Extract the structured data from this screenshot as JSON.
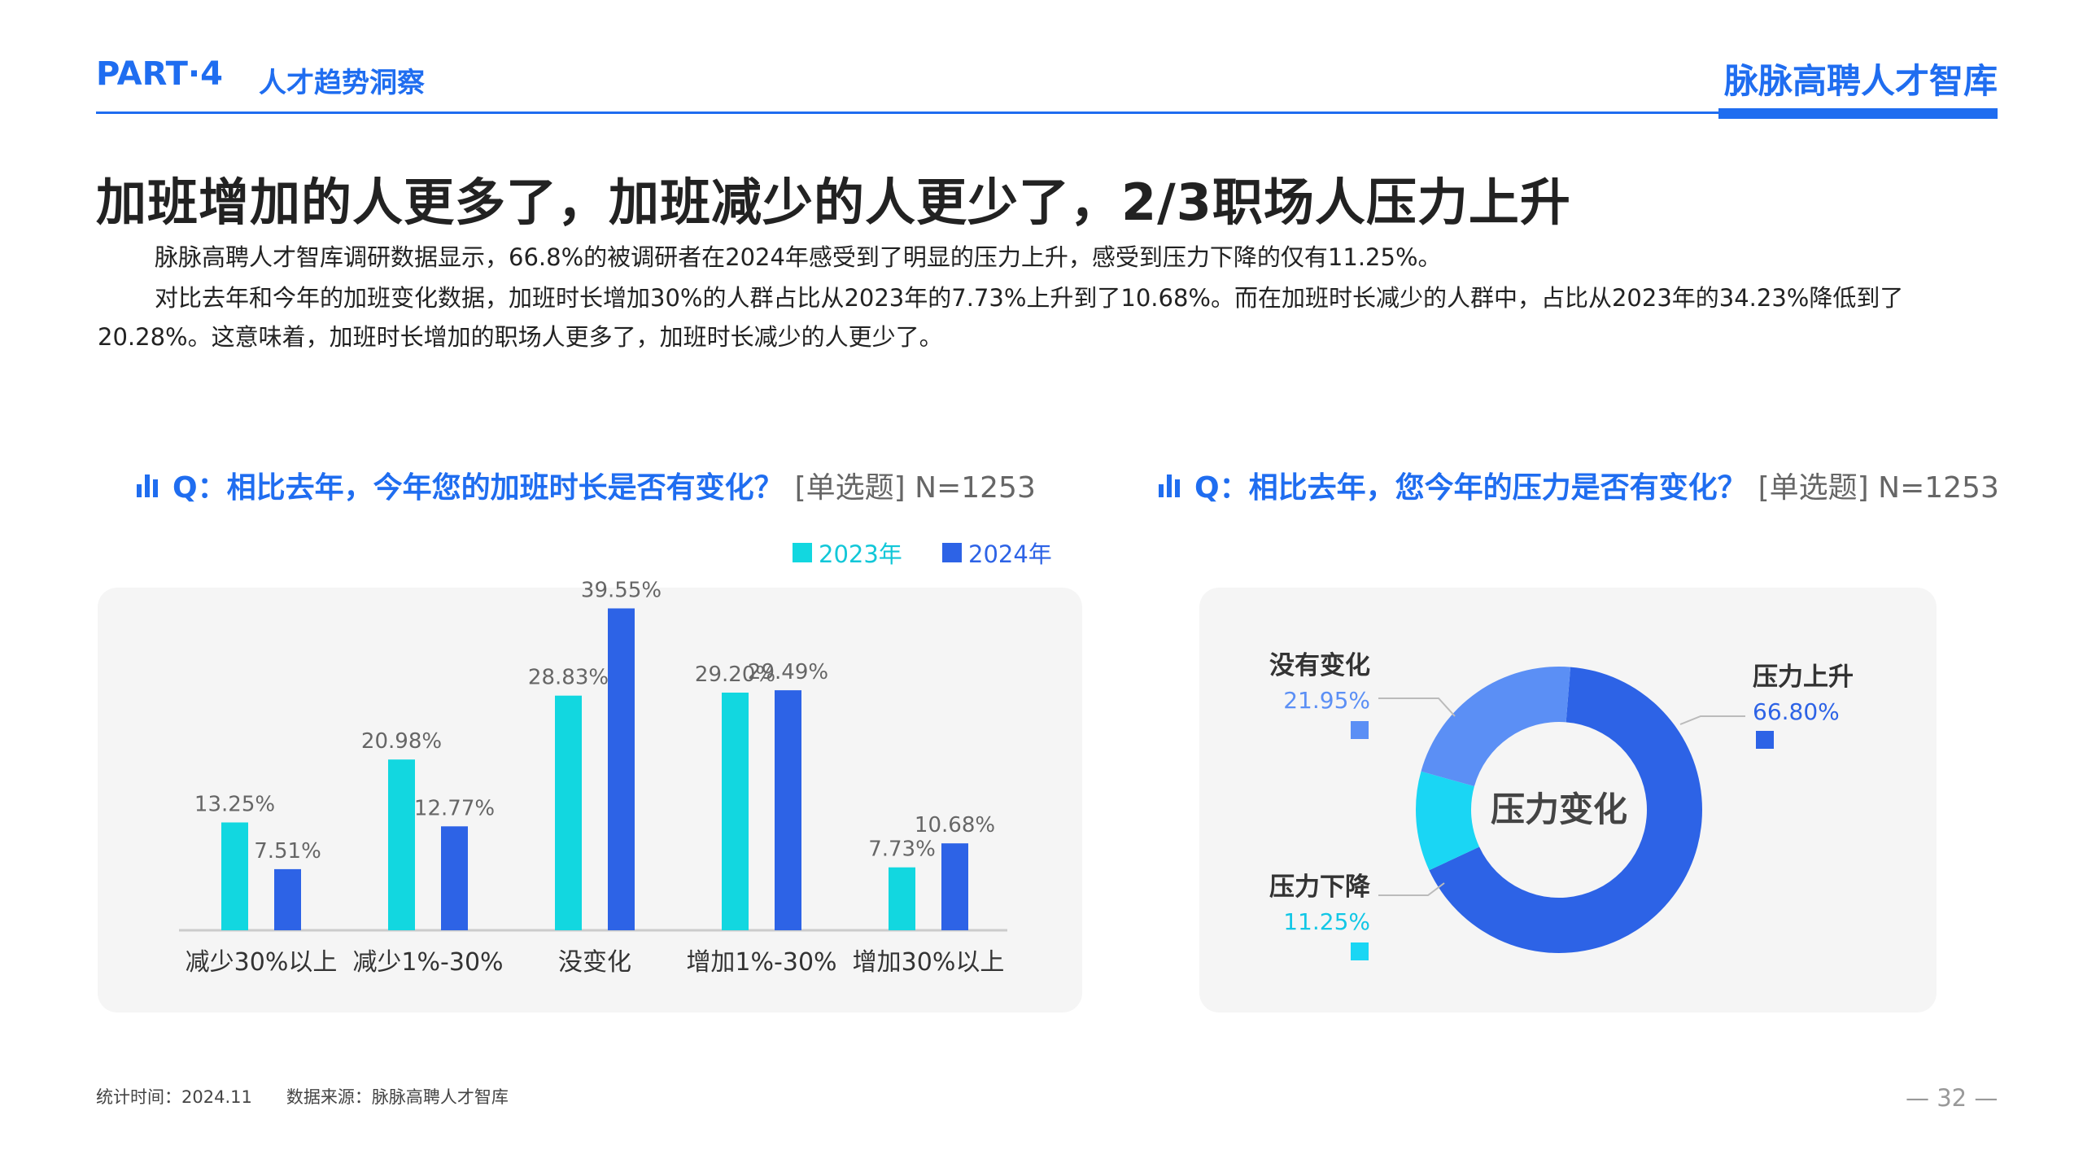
{
  "header": {
    "part": "PART",
    "part_sep": "·",
    "part_num": "4",
    "section": "人才趋势洞察",
    "brand": "脉脉高聘人才智库"
  },
  "headline": "加班增加的人更多了，加班减少的人更少了，2/3职场人压力上升",
  "paragraphs": [
    "脉脉高聘人才智库调研数据显示，66.8%的被调研者在2024年感受到了明显的压力上升，感受到压力下降的仅有11.25%。",
    "对比去年和今年的加班变化数据，加班时长增加30%的人群占比从2023年的7.73%上升到了10.68%。而在加班时长减少的人群中，占比从2023年的34.23%降低到了20.28%。这意味着，加班时长增加的职场人更多了，加班时长减少的人更少了。"
  ],
  "q1": {
    "main": "Q：相比去年，今年您的加班时长是否有变化？",
    "sub": "[单选题] N=1253"
  },
  "q2": {
    "main": "Q：相比去年，您今年的压力是否有变化？",
    "sub": "[单选题] N=1253"
  },
  "legend": {
    "a": "2023年",
    "b": "2024年"
  },
  "colors": {
    "accent": "#1f6df0",
    "bar_2023": "#12d7e0",
    "bar_2024": "#2d63e6",
    "donut_up": "#2d63e6",
    "donut_same": "#5b8ff5",
    "donut_down": "#1ad6f4"
  },
  "chart_data": [
    {
      "type": "bar",
      "categories": [
        "减少30%以上",
        "减少1%-30%",
        "没变化",
        "增加1%-30%",
        "增加30%以上"
      ],
      "series": [
        {
          "name": "2023年",
          "values": [
            13.25,
            20.98,
            28.83,
            29.2,
            7.73
          ],
          "labels": [
            "13.25%",
            "20.98%",
            "28.83%",
            "29.20%",
            "7.73%"
          ]
        },
        {
          "name": "2024年",
          "values": [
            7.51,
            12.77,
            39.55,
            29.49,
            10.68
          ],
          "labels": [
            "7.51%",
            "12.77%",
            "39.55%",
            "29.49%",
            "10.68%"
          ]
        }
      ],
      "ylim": [
        0,
        45
      ],
      "legend": "top-right",
      "grid": false
    },
    {
      "type": "pie",
      "title": "压力变化",
      "slices": [
        {
          "label": "压力上升",
          "value": 66.8,
          "display": "66.80%"
        },
        {
          "label": "压力下降",
          "value": 11.25,
          "display": "11.25%"
        },
        {
          "label": "没有变化",
          "value": 21.95,
          "display": "21.95%"
        }
      ]
    }
  ],
  "footnote": "统计时间：2024.11　　数据来源：脉脉高聘人才智库",
  "page_number": "— 32 —"
}
